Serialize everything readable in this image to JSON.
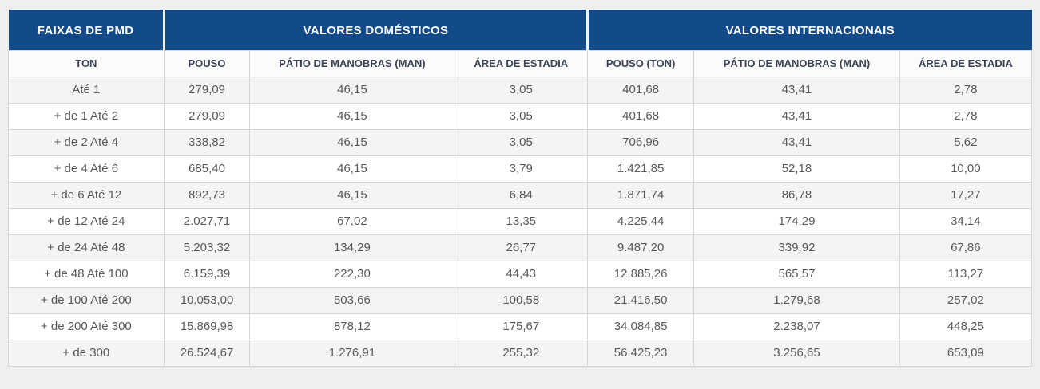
{
  "colors": {
    "header_blue": "#134b8a",
    "header_blue_dark_edge": "#0e3e73",
    "subheader_bg": "#fbfbfb",
    "subheader_text": "#3a4254",
    "row_stripe": "#f4f4f4",
    "row_white": "#ffffff",
    "cell_text": "#58585a",
    "border": "#d6d6d6",
    "page_background": "#efeff0",
    "group_gap": "#f3f3f5"
  },
  "table": {
    "groups": {
      "faixas": "FAIXAS DE PMD",
      "domesticos": "VALORES DOMÉSTICOS",
      "internacionais": "VALORES INTERNACIONAIS"
    },
    "columns": [
      "TON",
      "POUSO",
      "PÁTIO DE MANOBRAS (MAN)",
      "ÁREA DE ESTADIA",
      "POUSO (TON)",
      "PÁTIO DE MANOBRAS (MAN)",
      "ÁREA DE ESTADIA"
    ],
    "rows": [
      [
        "Até 1",
        "279,09",
        "46,15",
        "3,05",
        "401,68",
        "43,41",
        "2,78"
      ],
      [
        "+ de 1 Até 2",
        "279,09",
        "46,15",
        "3,05",
        "401,68",
        "43,41",
        "2,78"
      ],
      [
        "+ de 2 Até 4",
        "338,82",
        "46,15",
        "3,05",
        "706,96",
        "43,41",
        "5,62"
      ],
      [
        "+ de 4 Até 6",
        "685,40",
        "46,15",
        "3,79",
        "1.421,85",
        "52,18",
        "10,00"
      ],
      [
        "+ de 6 Até 12",
        "892,73",
        "46,15",
        "6,84",
        "1.871,74",
        "86,78",
        "17,27"
      ],
      [
        "+ de 12 Até 24",
        "2.027,71",
        "67,02",
        "13,35",
        "4.225,44",
        "174,29",
        "34,14"
      ],
      [
        "+ de 24 Até 48",
        "5.203,32",
        "134,29",
        "26,77",
        "9.487,20",
        "339,92",
        "67,86"
      ],
      [
        "+ de 48 Até 100",
        "6.159,39",
        "222,30",
        "44,43",
        "12.885,26",
        "565,57",
        "113,27"
      ],
      [
        "+ de 100 Até 200",
        "10.053,00",
        "503,66",
        "100,58",
        "21.416,50",
        "1.279,68",
        "257,02"
      ],
      [
        "+ de 200 Até 300",
        "15.869,98",
        "878,12",
        "175,67",
        "34.084,85",
        "2.238,07",
        "448,25"
      ],
      [
        "+ de 300",
        "26.524,67",
        "1.276,91",
        "255,32",
        "56.425,23",
        "3.256,65",
        "653,09"
      ]
    ]
  }
}
